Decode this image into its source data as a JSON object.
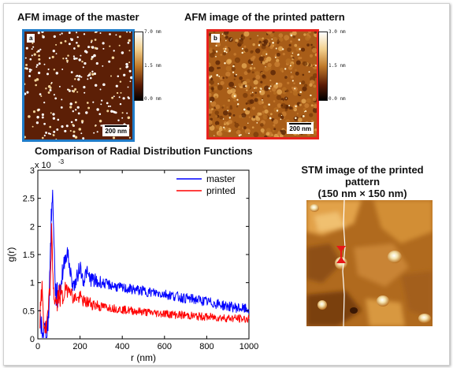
{
  "figure": {
    "afm_master": {
      "title": "AFM image of the master",
      "panel_letter": "a",
      "scale_bar": "200 nm",
      "colorbar": {
        "max": "7.0 nm",
        "mid": "1.5 nm",
        "min": "0.0 nm"
      },
      "border_color": "#1f7cc9"
    },
    "afm_printed": {
      "title": "AFM image of the printed pattern",
      "panel_letter": "b",
      "scale_bar": "200 nm",
      "colorbar": {
        "max": "3.0 nm",
        "mid": "1.5 nm",
        "min": "0.0 nm"
      },
      "border_color": "#e8231e"
    },
    "rdf_title": "Comparison of Radial Distribution Functions",
    "stm": {
      "title_line1": "STM image of the printed pattern",
      "title_line2": "(150 nm × 150 nm)"
    }
  },
  "chart_data": {
    "type": "line",
    "title": "",
    "xlabel": "r (nm)",
    "ylabel": "g(r)",
    "y_multiplier": "x 10",
    "y_exponent": "-3",
    "xlim": [
      0,
      1000
    ],
    "ylim": [
      0,
      3
    ],
    "x_ticks": [
      "0",
      "200",
      "400",
      "600",
      "800",
      "1000"
    ],
    "y_ticks": [
      "0",
      "0.5",
      "1",
      "1.5",
      "2",
      "2.5",
      "3"
    ],
    "grid": false,
    "legend_position": "top-right",
    "series": [
      {
        "name": "master",
        "color": "#0000ff",
        "x": [
          10,
          25,
          40,
          50,
          60,
          65,
          70,
          75,
          80,
          85,
          90,
          100,
          110,
          120,
          130,
          140,
          150,
          160,
          170,
          180,
          190,
          200,
          210,
          220,
          230,
          240,
          260,
          280,
          300,
          350,
          400,
          450,
          500,
          550,
          600,
          650,
          700,
          750,
          800,
          850,
          900,
          950,
          1000
        ],
        "y": [
          0.3,
          0.15,
          0.12,
          0.35,
          1.6,
          2.3,
          2.5,
          2.1,
          1.2,
          0.8,
          0.75,
          0.8,
          1.0,
          1.25,
          1.45,
          1.55,
          1.3,
          1.05,
          0.95,
          1.0,
          1.15,
          1.3,
          1.1,
          1.05,
          1.2,
          1.1,
          1.05,
          1.0,
          1.0,
          0.95,
          0.9,
          0.88,
          0.85,
          0.82,
          0.8,
          0.76,
          0.72,
          0.7,
          0.66,
          0.62,
          0.58,
          0.55,
          0.52
        ]
      },
      {
        "name": "printed",
        "color": "#ff0000",
        "x": [
          10,
          20,
          30,
          40,
          50,
          60,
          65,
          70,
          75,
          80,
          90,
          100,
          110,
          120,
          130,
          140,
          150,
          160,
          170,
          180,
          190,
          200,
          220,
          240,
          260,
          280,
          300,
          350,
          400,
          450,
          500,
          550,
          600,
          650,
          700,
          750,
          800,
          850,
          900,
          950,
          1000
        ],
        "y": [
          0.35,
          0.9,
          0.2,
          0.15,
          0.5,
          1.0,
          1.9,
          1.3,
          0.85,
          0.7,
          0.6,
          0.8,
          0.75,
          0.7,
          0.9,
          0.85,
          0.95,
          0.8,
          0.7,
          0.75,
          0.7,
          0.75,
          0.65,
          0.65,
          0.62,
          0.6,
          0.58,
          0.55,
          0.52,
          0.5,
          0.48,
          0.46,
          0.45,
          0.43,
          0.42,
          0.4,
          0.39,
          0.38,
          0.37,
          0.36,
          0.35
        ]
      }
    ]
  }
}
